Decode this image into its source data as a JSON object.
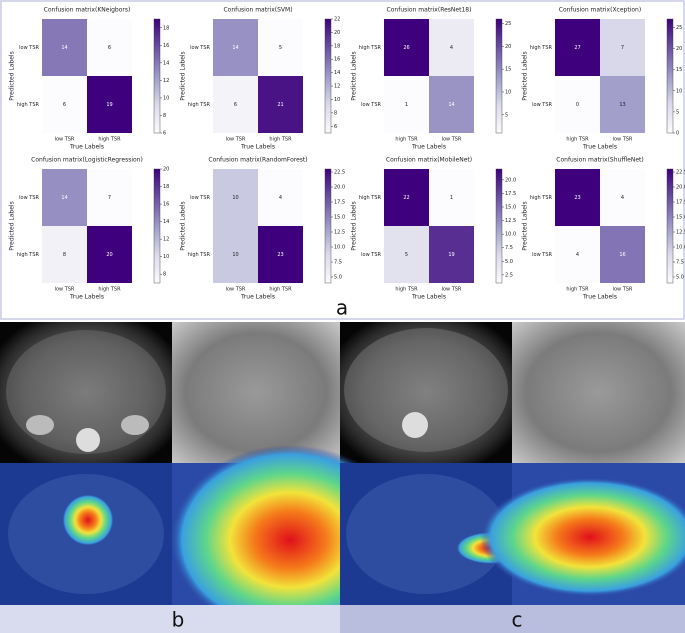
{
  "chart_data": [
    {
      "type": "heatmap",
      "title": "Confusion matrix(KNeigbors)",
      "xlabel": "True Labels",
      "ylabel": "Predicted Labels",
      "x_categories": [
        "low TSR",
        "high TSR"
      ],
      "y_categories": [
        "low TSR",
        "high TSR"
      ],
      "values": [
        [
          14,
          6
        ],
        [
          6,
          19
        ]
      ],
      "colors": [
        "#fcfbfd",
        "#dadaeb",
        "#9e9ac8",
        "#6a51a3",
        "#3f007d"
      ],
      "clim": [
        6,
        19
      ],
      "cticks": [
        6,
        8,
        10,
        12,
        14,
        16,
        18
      ]
    },
    {
      "type": "heatmap",
      "title": "Confusion matrix(SVM)",
      "xlabel": "True Labels",
      "ylabel": "Predicted Labels",
      "x_categories": [
        "low TSR",
        "high TSR"
      ],
      "y_categories": [
        "low TSR",
        "high TSR"
      ],
      "values": [
        [
          14,
          5
        ],
        [
          6,
          21
        ]
      ],
      "colors": [
        "#fcfbfd",
        "#dadaeb",
        "#9e9ac8",
        "#6a51a3",
        "#3f007d"
      ],
      "clim": [
        5,
        22
      ],
      "cticks": [
        6,
        8,
        10,
        12,
        14,
        16,
        18,
        20,
        22
      ]
    },
    {
      "type": "heatmap",
      "title": "Confusion matrix(ResNet18)",
      "xlabel": "True Labels",
      "ylabel": "Predicted Labels",
      "x_categories": [
        "high TSR",
        "low TSR"
      ],
      "y_categories": [
        "high TSR",
        "low TSR"
      ],
      "values": [
        [
          26,
          4
        ],
        [
          1,
          14
        ]
      ],
      "colors": [
        "#fcfbfd",
        "#dadaeb",
        "#9e9ac8",
        "#6a51a3",
        "#3f007d"
      ],
      "clim": [
        1,
        26
      ],
      "cticks": [
        5,
        10,
        15,
        20,
        25
      ]
    },
    {
      "type": "heatmap",
      "title": "Confusion matrix(Xception)",
      "xlabel": "True Labels",
      "ylabel": "Predicted Labels",
      "x_categories": [
        "high TSR",
        "low TSR"
      ],
      "y_categories": [
        "high TSR",
        "low TSR"
      ],
      "values": [
        [
          27,
          7
        ],
        [
          0,
          13
        ]
      ],
      "colors": [
        "#fcfbfd",
        "#dadaeb",
        "#9e9ac8",
        "#6a51a3",
        "#3f007d"
      ],
      "clim": [
        0,
        27
      ],
      "cticks": [
        0,
        5,
        10,
        15,
        20,
        25
      ]
    },
    {
      "type": "heatmap",
      "title": "Confusion matrix(LogisticRegression)",
      "xlabel": "True Labels",
      "ylabel": "Predicted Labels",
      "x_categories": [
        "low TSR",
        "high TSR"
      ],
      "y_categories": [
        "low TSR",
        "high TSR"
      ],
      "values": [
        [
          14,
          7
        ],
        [
          8,
          20
        ]
      ],
      "colors": [
        "#fcfbfd",
        "#dadaeb",
        "#9e9ac8",
        "#6a51a3",
        "#3f007d"
      ],
      "clim": [
        7,
        20
      ],
      "cticks": [
        8,
        10,
        12,
        14,
        16,
        18,
        20
      ]
    },
    {
      "type": "heatmap",
      "title": "Confusion matrix(RandomForest)",
      "xlabel": "True Labels",
      "ylabel": "Predicted Labels",
      "x_categories": [
        "low TSR",
        "high TSR"
      ],
      "y_categories": [
        "low TSR",
        "high TSR"
      ],
      "values": [
        [
          10,
          4
        ],
        [
          10,
          23
        ]
      ],
      "colors": [
        "#fcfbfd",
        "#dadaeb",
        "#9e9ac8",
        "#6a51a3",
        "#3f007d"
      ],
      "clim": [
        4,
        23
      ],
      "cticks": [
        {
          "value": 5,
          "label": "5.0"
        },
        7.5,
        {
          "value": 10,
          "label": "10.0"
        },
        12.5,
        {
          "value": 15,
          "label": "15.0"
        },
        17.5,
        {
          "value": 20,
          "label": "20.0"
        },
        22.5
      ]
    },
    {
      "type": "heatmap",
      "title": "Confusion matrix(MobileNet)",
      "xlabel": "True Labels",
      "ylabel": "Predicted Labels",
      "x_categories": [
        "high TSR",
        "low TSR"
      ],
      "y_categories": [
        "high TSR",
        "low TSR"
      ],
      "values": [
        [
          22,
          1
        ],
        [
          5,
          19
        ]
      ],
      "colors": [
        "#fcfbfd",
        "#dadaeb",
        "#9e9ac8",
        "#6a51a3",
        "#3f007d"
      ],
      "clim": [
        1,
        22
      ],
      "cticks": [
        2.5,
        {
          "value": 5,
          "label": "5.0"
        },
        7.5,
        {
          "value": 10,
          "label": "10.0"
        },
        12.5,
        {
          "value": 15,
          "label": "15.0"
        },
        17.5,
        {
          "value": 20,
          "label": "20.0"
        }
      ]
    },
    {
      "type": "heatmap",
      "title": "Confusion matrix(ShuffleNet)",
      "xlabel": "True Labels",
      "ylabel": "Predicted Labels",
      "x_categories": [
        "high TSR",
        "low TSR"
      ],
      "y_categories": [
        "high TSR",
        "low TSR"
      ],
      "values": [
        [
          23,
          4
        ],
        [
          4,
          16
        ]
      ],
      "colors": [
        "#fcfbfd",
        "#dadaeb",
        "#9e9ac8",
        "#6a51a3",
        "#3f007d"
      ],
      "clim": [
        4,
        23
      ],
      "cticks": [
        {
          "value": 5,
          "label": "5.0"
        },
        7.5,
        {
          "value": 10,
          "label": "10.0"
        },
        12.5,
        {
          "value": 15,
          "label": "15.0"
        },
        17.5,
        {
          "value": 20,
          "label": "20.0"
        },
        22.5
      ]
    }
  ],
  "panel_labels": {
    "a": "a",
    "b": "b",
    "c": "c"
  }
}
